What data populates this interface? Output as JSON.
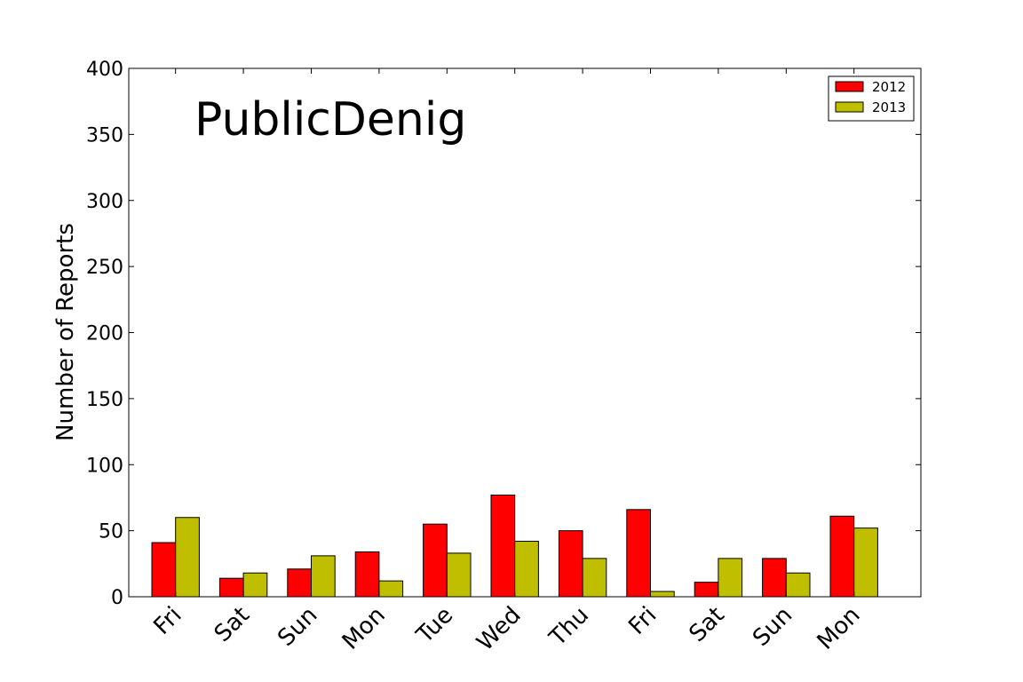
{
  "chart_data": {
    "type": "bar",
    "title": "PublicDenig",
    "xlabel": "",
    "ylabel": "Number of Reports",
    "ylim": [
      0,
      400
    ],
    "yticks": [
      0,
      50,
      100,
      150,
      200,
      250,
      300,
      350,
      400
    ],
    "categories": [
      "Fri",
      "Sat",
      "Sun",
      "Mon",
      "Tue",
      "Wed",
      "Thu",
      "Fri",
      "Sat",
      "Sun",
      "Mon"
    ],
    "series": [
      {
        "name": "2012",
        "color": "#ff0000",
        "values": [
          41,
          14,
          21,
          34,
          55,
          77,
          50,
          66,
          11,
          29,
          61
        ]
      },
      {
        "name": "2013",
        "color": "#bfbf00",
        "values": [
          60,
          18,
          31,
          12,
          33,
          42,
          29,
          4,
          29,
          18,
          52
        ]
      }
    ],
    "legend_position": "top-right",
    "grid": false
  }
}
